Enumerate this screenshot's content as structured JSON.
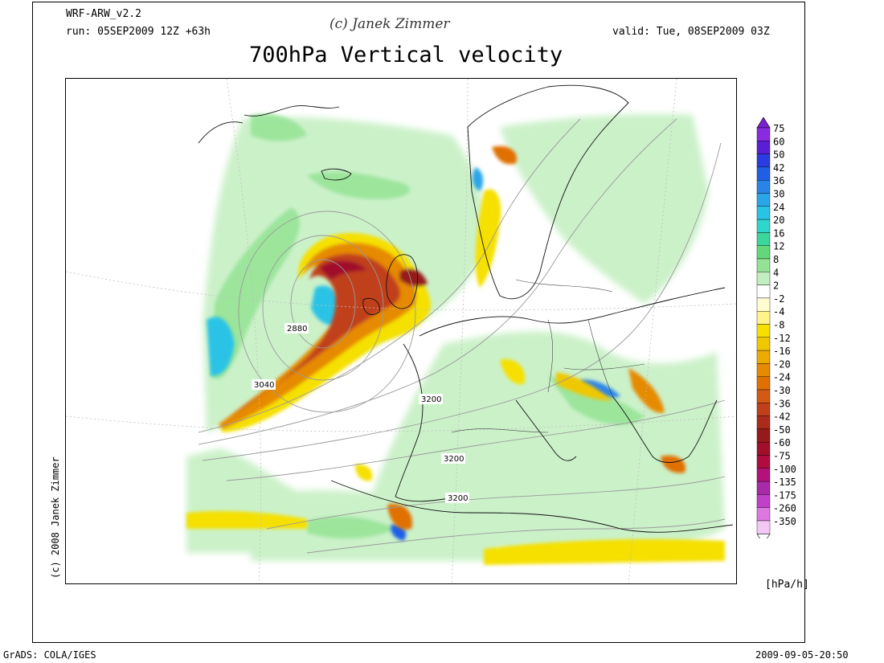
{
  "header": {
    "model": "WRF-ARW_v2.2",
    "run": "run: 05SEP2009 12Z +63h",
    "copyright_top": "(c) Janek Zimmer",
    "valid": "valid: Tue, 08SEP2009 03Z",
    "title": "700hPa Vertical velocity"
  },
  "side_copyright": "(c) 2008 Janek Zimmer",
  "footer": {
    "grads": "GrADS: COLA/IGES",
    "timestamp": "2009-09-05-20:50"
  },
  "contour_labels": [
    "2880",
    "3040",
    "3200",
    "3200",
    "3200"
  ],
  "colorbar": {
    "units": "[hPa/h]",
    "levels": [
      {
        "label": "75",
        "color": "#8a2be2"
      },
      {
        "label": "60",
        "color": "#5a1ed6"
      },
      {
        "label": "50",
        "color": "#2a3bdf"
      },
      {
        "label": "42",
        "color": "#1f5fe6"
      },
      {
        "label": "36",
        "color": "#2a84e8"
      },
      {
        "label": "30",
        "color": "#2aa6e8"
      },
      {
        "label": "24",
        "color": "#29c3e6"
      },
      {
        "label": "20",
        "color": "#2fd6cc"
      },
      {
        "label": "16",
        "color": "#3bd69c"
      },
      {
        "label": "12",
        "color": "#63d87a"
      },
      {
        "label": "8",
        "color": "#94e394"
      },
      {
        "label": "4",
        "color": "#c2efc0"
      },
      {
        "label": "2",
        "color": "#ffffff"
      },
      {
        "label": "-2",
        "color": "#fffdd0"
      },
      {
        "label": "-4",
        "color": "#fff38a"
      },
      {
        "label": "-8",
        "color": "#f5e000"
      },
      {
        "label": "-12",
        "color": "#f0c800"
      },
      {
        "label": "-16",
        "color": "#edaa00"
      },
      {
        "label": "-20",
        "color": "#e68a00"
      },
      {
        "label": "-24",
        "color": "#e07000"
      },
      {
        "label": "-30",
        "color": "#d25a14"
      },
      {
        "label": "-36",
        "color": "#c0401a"
      },
      {
        "label": "-42",
        "color": "#aa2a1c"
      },
      {
        "label": "-50",
        "color": "#961a1a"
      },
      {
        "label": "-60",
        "color": "#a0102a"
      },
      {
        "label": "-75",
        "color": "#b00c40"
      },
      {
        "label": "-100",
        "color": "#b4127a"
      },
      {
        "label": "-135",
        "color": "#a82aa8"
      },
      {
        "label": "-175",
        "color": "#c040c8"
      },
      {
        "label": "-260",
        "color": "#dc78e0"
      },
      {
        "label": "-350",
        "color": "#f4c8f4"
      }
    ],
    "top_color": "#7a20d0",
    "bottom_color": "#ffffff"
  }
}
